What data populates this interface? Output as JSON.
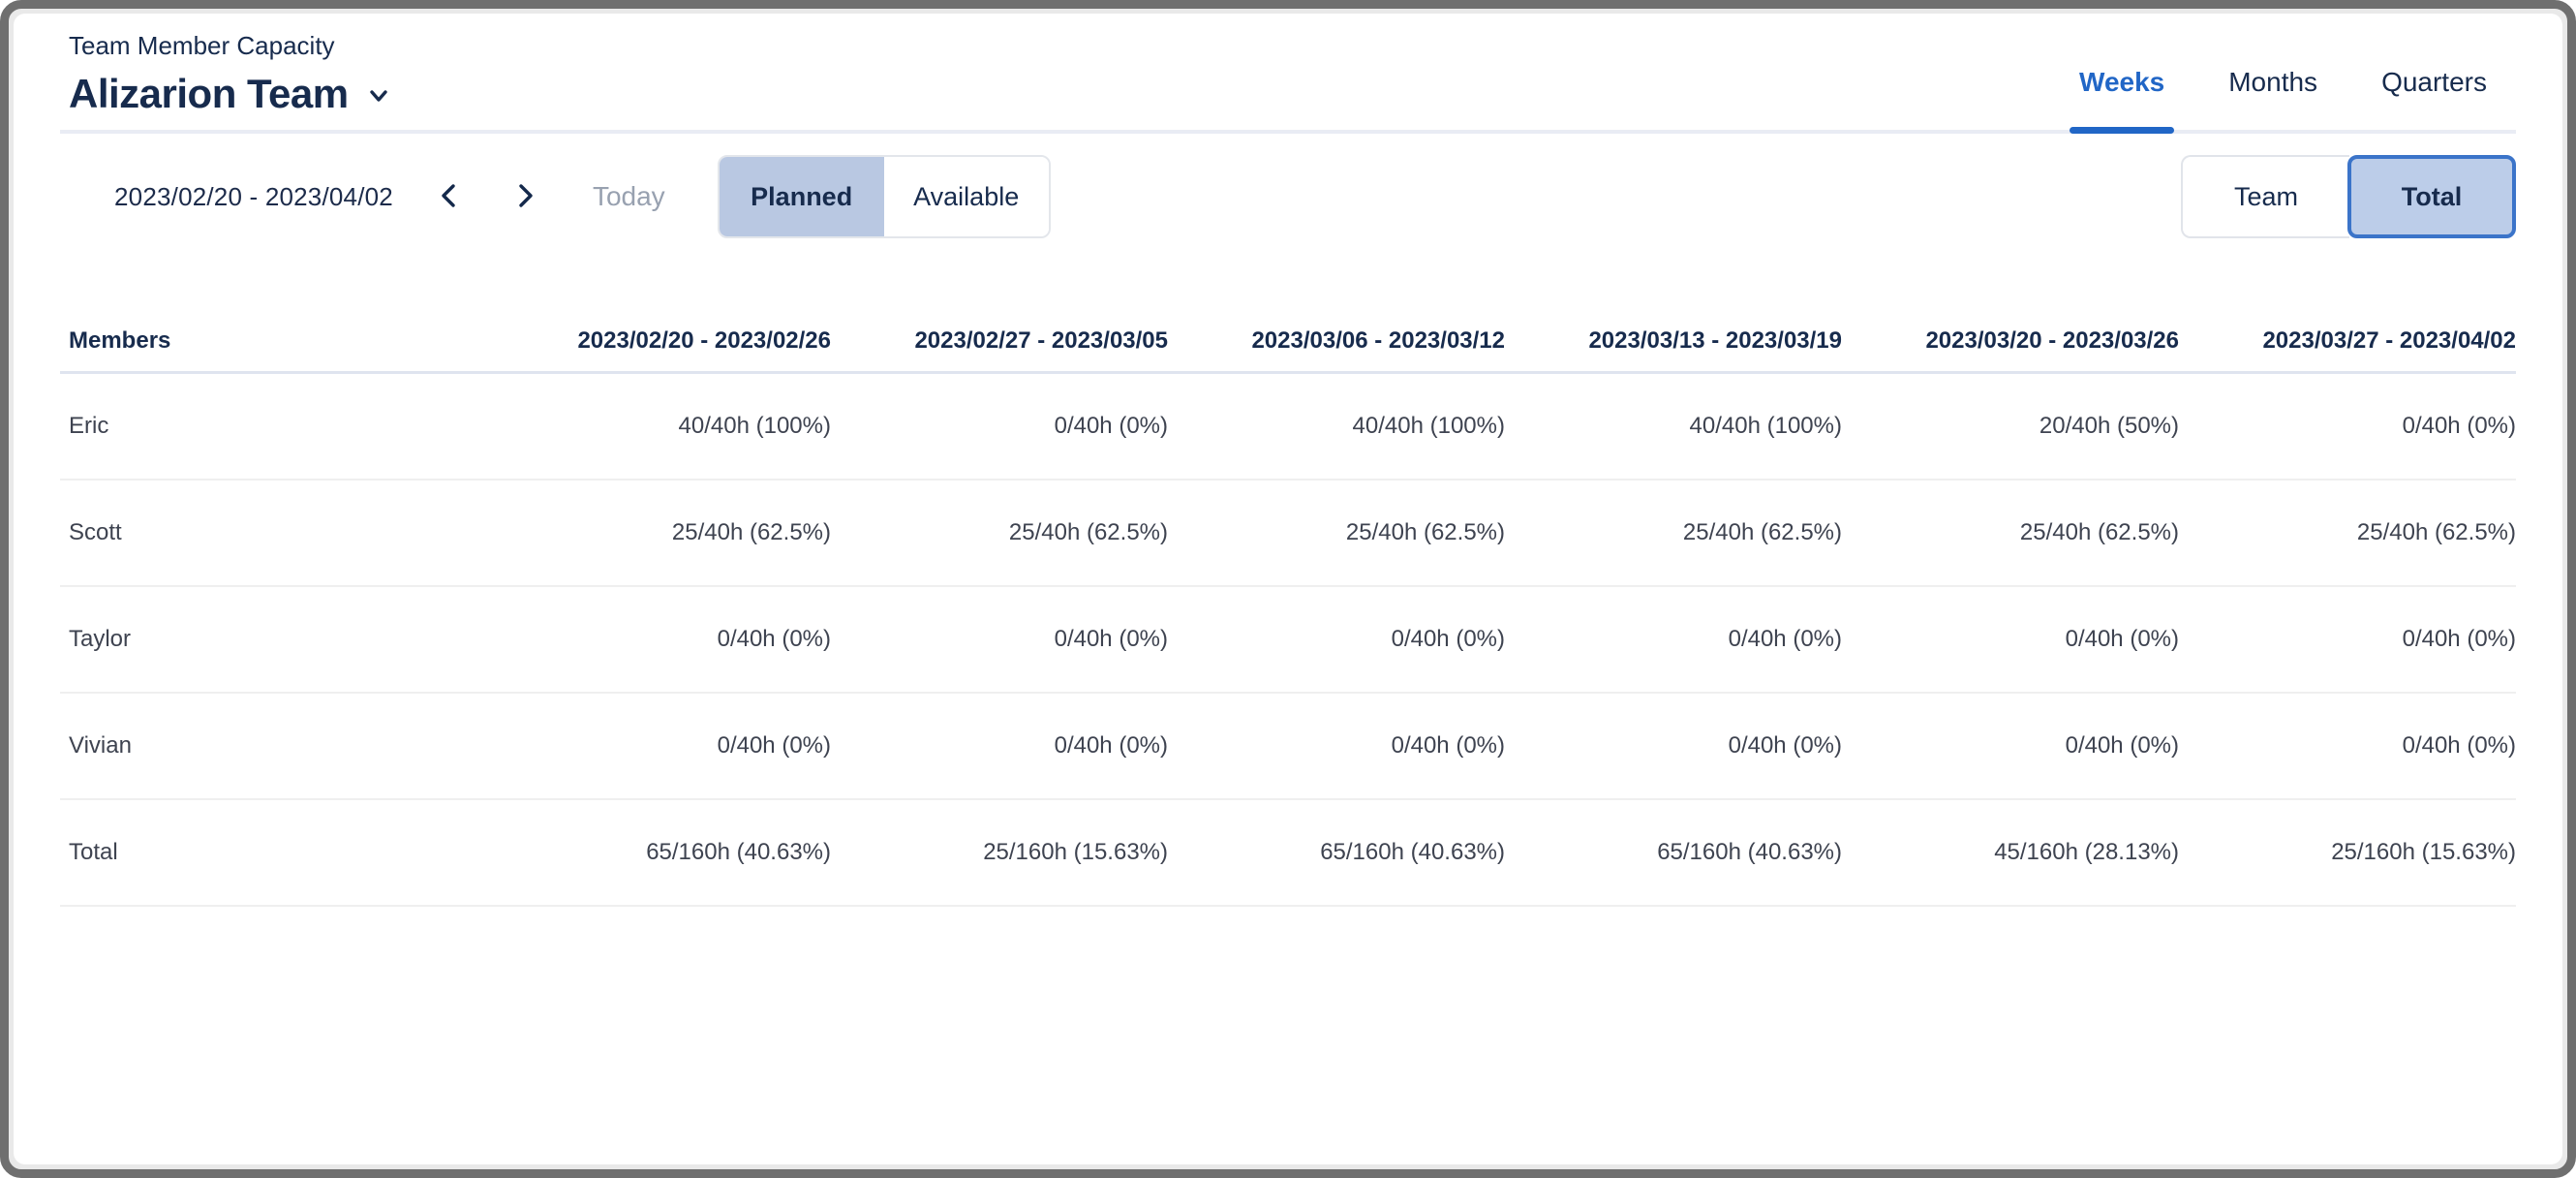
{
  "header": {
    "subtitle": "Team Member Capacity",
    "team_name": "Alizarion Team",
    "view_tabs": [
      {
        "label": "Weeks",
        "active": true
      },
      {
        "label": "Months",
        "active": false
      },
      {
        "label": "Quarters",
        "active": false
      }
    ]
  },
  "toolbar": {
    "date_range": "2023/02/20 - 2023/04/02",
    "prev_icon": "chevron-left",
    "next_icon": "chevron-right",
    "today_label": "Today",
    "mode_toggle": [
      {
        "label": "Planned",
        "selected": true
      },
      {
        "label": "Available",
        "selected": false
      }
    ],
    "scope_toggle": [
      {
        "label": "Team",
        "selected": false
      },
      {
        "label": "Total",
        "selected": true
      }
    ]
  },
  "table": {
    "columns": [
      "Members",
      "2023/02/20 - 2023/02/26",
      "2023/02/27 - 2023/03/05",
      "2023/03/06 - 2023/03/12",
      "2023/03/13 - 2023/03/19",
      "2023/03/20 - 2023/03/26",
      "2023/03/27 - 2023/04/02"
    ],
    "rows": [
      {
        "name": "Eric",
        "values": [
          "40/40h (100%)",
          "0/40h (0%)",
          "40/40h (100%)",
          "40/40h (100%)",
          "20/40h (50%)",
          "0/40h (0%)"
        ]
      },
      {
        "name": "Scott",
        "values": [
          "25/40h (62.5%)",
          "25/40h (62.5%)",
          "25/40h (62.5%)",
          "25/40h (62.5%)",
          "25/40h (62.5%)",
          "25/40h (62.5%)"
        ]
      },
      {
        "name": "Taylor",
        "values": [
          "0/40h (0%)",
          "0/40h (0%)",
          "0/40h (0%)",
          "0/40h (0%)",
          "0/40h (0%)",
          "0/40h (0%)"
        ]
      },
      {
        "name": "Vivian",
        "values": [
          "0/40h (0%)",
          "0/40h (0%)",
          "0/40h (0%)",
          "0/40h (0%)",
          "0/40h (0%)",
          "0/40h (0%)"
        ]
      },
      {
        "name": "Total",
        "values": [
          "65/160h (40.63%)",
          "25/160h (15.63%)",
          "65/160h (40.63%)",
          "65/160h (40.63%)",
          "45/160h (28.13%)",
          "25/160h (15.63%)"
        ]
      }
    ]
  },
  "colors": {
    "navy": "#172B4D",
    "accent_blue": "#2166C6",
    "selected_bg": "#B9C8E2",
    "total_border": "#3B74C9",
    "muted_gray": "#98A1B0"
  }
}
